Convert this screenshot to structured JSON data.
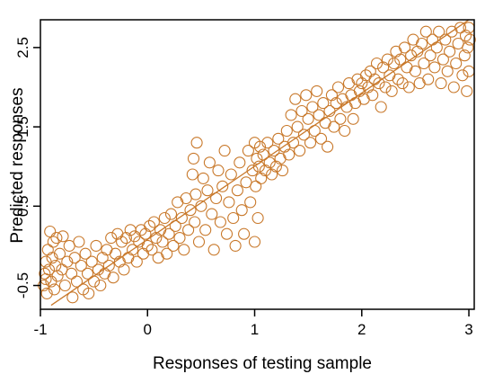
{
  "chart_data": {
    "type": "scatter",
    "xlabel": "Responses of testing sample",
    "ylabel": "Predicted responses",
    "xlim": [
      -1.0,
      3.05
    ],
    "ylim": [
      -0.8,
      2.85
    ],
    "xticks": [
      "-1",
      "0",
      "1",
      "2",
      "3"
    ],
    "yticks": [
      "-0.5",
      "0.5",
      "1.5",
      "2.5"
    ],
    "point_color": "#C8782A",
    "line_color": "#C8782A",
    "frame_color": "#000000",
    "reference_line": {
      "x": [
        -0.9,
        3.0
      ],
      "y": [
        -0.75,
        2.85
      ]
    },
    "points": [
      [
        -0.97,
        -0.5
      ],
      [
        -0.96,
        -0.35
      ],
      [
        -0.95,
        -0.2
      ],
      [
        -0.95,
        -0.42
      ],
      [
        -0.94,
        -0.6
      ],
      [
        -0.93,
        -0.05
      ],
      [
        -0.92,
        -0.3
      ],
      [
        -0.91,
        0.18
      ],
      [
        -0.9,
        -0.45
      ],
      [
        -0.89,
        -0.15
      ],
      [
        -0.88,
        0.05
      ],
      [
        -0.87,
        -0.55
      ],
      [
        -0.86,
        -0.25
      ],
      [
        -0.85,
        0.1
      ],
      [
        -0.84,
        -0.38
      ],
      [
        -0.82,
        -0.1
      ],
      [
        -0.8,
        -0.3
      ],
      [
        -0.79,
        0.12
      ],
      [
        -0.77,
        -0.5
      ],
      [
        -0.75,
        -0.2
      ],
      [
        -0.73,
        0.0
      ],
      [
        -0.71,
        -0.35
      ],
      [
        -0.7,
        -0.65
      ],
      [
        -0.68,
        -0.15
      ],
      [
        -0.66,
        -0.45
      ],
      [
        -0.64,
        0.05
      ],
      [
        -0.62,
        -0.25
      ],
      [
        -0.6,
        -0.55
      ],
      [
        -0.58,
        -0.1
      ],
      [
        -0.56,
        -0.35
      ],
      [
        -0.55,
        -0.6
      ],
      [
        -0.52,
        -0.2
      ],
      [
        -0.5,
        -0.45
      ],
      [
        -0.48,
        0.0
      ],
      [
        -0.46,
        -0.3
      ],
      [
        -0.44,
        -0.5
      ],
      [
        -0.42,
        -0.15
      ],
      [
        -0.4,
        -0.35
      ],
      [
        -0.38,
        -0.05
      ],
      [
        -0.36,
        -0.25
      ],
      [
        -0.34,
        0.1
      ],
      [
        -0.32,
        -0.4
      ],
      [
        -0.3,
        -0.1
      ],
      [
        -0.28,
        0.15
      ],
      [
        -0.26,
        -0.2
      ],
      [
        -0.24,
        0.05
      ],
      [
        -0.22,
        -0.3
      ],
      [
        -0.2,
        0.1
      ],
      [
        -0.18,
        -0.15
      ],
      [
        -0.16,
        0.2
      ],
      [
        -0.14,
        -0.05
      ],
      [
        -0.12,
        0.12
      ],
      [
        -0.1,
        -0.2
      ],
      [
        -0.08,
        0.05
      ],
      [
        -0.06,
        0.2
      ],
      [
        -0.04,
        -0.1
      ],
      [
        -0.02,
        0.15
      ],
      [
        0.0,
        0.0
      ],
      [
        0.02,
        0.25
      ],
      [
        0.04,
        -0.05
      ],
      [
        0.06,
        0.3
      ],
      [
        0.08,
        0.1
      ],
      [
        0.1,
        -0.15
      ],
      [
        0.12,
        0.2
      ],
      [
        0.14,
        0.05
      ],
      [
        0.16,
        0.35
      ],
      [
        0.18,
        -0.1
      ],
      [
        0.2,
        0.15
      ],
      [
        0.22,
        0.4
      ],
      [
        0.24,
        0.0
      ],
      [
        0.26,
        0.25
      ],
      [
        0.28,
        0.55
      ],
      [
        0.3,
        0.1
      ],
      [
        0.32,
        0.35
      ],
      [
        0.34,
        -0.05
      ],
      [
        0.36,
        0.6
      ],
      [
        0.38,
        0.2
      ],
      [
        0.4,
        0.45
      ],
      [
        0.42,
        0.9
      ],
      [
        0.43,
        1.1
      ],
      [
        0.44,
        0.3
      ],
      [
        0.45,
        0.65
      ],
      [
        0.46,
        1.3
      ],
      [
        0.48,
        0.05
      ],
      [
        0.5,
        0.5
      ],
      [
        0.52,
        0.85
      ],
      [
        0.54,
        0.2
      ],
      [
        0.56,
        0.7
      ],
      [
        0.58,
        1.05
      ],
      [
        0.6,
        0.4
      ],
      [
        0.62,
        -0.05
      ],
      [
        0.64,
        0.6
      ],
      [
        0.66,
        0.95
      ],
      [
        0.68,
        0.3
      ],
      [
        0.7,
        0.75
      ],
      [
        0.72,
        1.2
      ],
      [
        0.74,
        0.15
      ],
      [
        0.76,
        0.55
      ],
      [
        0.78,
        0.9
      ],
      [
        0.8,
        0.35
      ],
      [
        0.82,
        0.0
      ],
      [
        0.84,
        0.7
      ],
      [
        0.86,
        1.05
      ],
      [
        0.88,
        0.45
      ],
      [
        0.9,
        0.15
      ],
      [
        0.92,
        0.8
      ],
      [
        0.94,
        1.2
      ],
      [
        0.96,
        0.55
      ],
      [
        0.98,
        0.95
      ],
      [
        1.0,
        1.3
      ],
      [
        1.0,
        0.05
      ],
      [
        1.01,
        0.75
      ],
      [
        1.02,
        1.1
      ],
      [
        1.03,
        0.35
      ],
      [
        1.04,
        1.0
      ],
      [
        1.05,
        1.25
      ],
      [
        1.06,
        0.85
      ],
      [
        1.08,
        1.15
      ],
      [
        1.1,
        0.95
      ],
      [
        1.12,
        1.3
      ],
      [
        1.14,
        1.05
      ],
      [
        1.16,
        0.9
      ],
      [
        1.18,
        1.2
      ],
      [
        1.2,
        1.0
      ],
      [
        1.22,
        1.35
      ],
      [
        1.24,
        1.1
      ],
      [
        1.26,
        0.95
      ],
      [
        1.28,
        1.25
      ],
      [
        1.3,
        1.45
      ],
      [
        1.32,
        1.15
      ],
      [
        1.34,
        1.65
      ],
      [
        1.36,
        1.3
      ],
      [
        1.38,
        1.85
      ],
      [
        1.4,
        1.5
      ],
      [
        1.42,
        1.2
      ],
      [
        1.44,
        1.7
      ],
      [
        1.46,
        1.4
      ],
      [
        1.48,
        1.9
      ],
      [
        1.5,
        1.6
      ],
      [
        1.52,
        1.3
      ],
      [
        1.54,
        1.75
      ],
      [
        1.56,
        1.45
      ],
      [
        1.58,
        1.95
      ],
      [
        1.6,
        1.65
      ],
      [
        1.62,
        1.35
      ],
      [
        1.64,
        1.8
      ],
      [
        1.66,
        1.55
      ],
      [
        1.68,
        1.25
      ],
      [
        1.7,
        1.7
      ],
      [
        1.72,
        1.9
      ],
      [
        1.74,
        1.5
      ],
      [
        1.76,
        1.8
      ],
      [
        1.78,
        2.0
      ],
      [
        1.8,
        1.6
      ],
      [
        1.82,
        1.85
      ],
      [
        1.84,
        1.45
      ],
      [
        1.86,
        1.75
      ],
      [
        1.88,
        2.05
      ],
      [
        1.9,
        1.9
      ],
      [
        1.92,
        1.6
      ],
      [
        1.94,
        1.8
      ],
      [
        1.96,
        2.1
      ],
      [
        1.98,
        1.95
      ],
      [
        2.0,
        2.05
      ],
      [
        2.02,
        1.85
      ],
      [
        2.04,
        2.15
      ],
      [
        2.06,
        2.0
      ],
      [
        2.08,
        2.2
      ],
      [
        2.1,
        1.9
      ],
      [
        2.12,
        2.1
      ],
      [
        2.14,
        2.3
      ],
      [
        2.16,
        2.05
      ],
      [
        2.18,
        1.75
      ],
      [
        2.2,
        2.25
      ],
      [
        2.22,
        2.0
      ],
      [
        2.24,
        2.35
      ],
      [
        2.26,
        2.15
      ],
      [
        2.28,
        1.95
      ],
      [
        2.3,
        2.3
      ],
      [
        2.32,
        2.45
      ],
      [
        2.34,
        2.1
      ],
      [
        2.36,
        2.35
      ],
      [
        2.38,
        2.05
      ],
      [
        2.4,
        2.5
      ],
      [
        2.42,
        2.25
      ],
      [
        2.44,
        2.0
      ],
      [
        2.46,
        2.4
      ],
      [
        2.48,
        2.6
      ],
      [
        2.5,
        2.2
      ],
      [
        2.52,
        2.45
      ],
      [
        2.54,
        2.05
      ],
      [
        2.56,
        2.55
      ],
      [
        2.58,
        2.3
      ],
      [
        2.6,
        2.7
      ],
      [
        2.62,
        2.1
      ],
      [
        2.64,
        2.4
      ],
      [
        2.66,
        2.6
      ],
      [
        2.68,
        2.25
      ],
      [
        2.7,
        2.5
      ],
      [
        2.72,
        2.7
      ],
      [
        2.74,
        2.05
      ],
      [
        2.76,
        2.35
      ],
      [
        2.78,
        2.6
      ],
      [
        2.8,
        2.2
      ],
      [
        2.82,
        2.45
      ],
      [
        2.84,
        2.7
      ],
      [
        2.86,
        2.0
      ],
      [
        2.88,
        2.3
      ],
      [
        2.9,
        2.55
      ],
      [
        2.92,
        2.75
      ],
      [
        2.94,
        2.15
      ],
      [
        2.96,
        2.4
      ],
      [
        2.97,
        2.65
      ],
      [
        2.98,
        1.95
      ],
      [
        2.99,
        2.5
      ],
      [
        3.0,
        2.75
      ],
      [
        3.0,
        2.2
      ],
      [
        3.01,
        2.6
      ]
    ]
  }
}
